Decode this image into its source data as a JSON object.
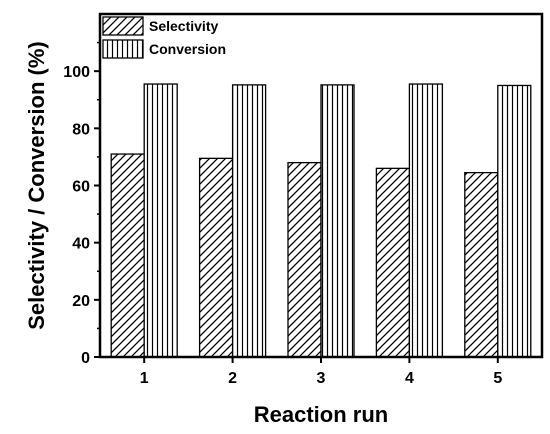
{
  "chart_data": {
    "type": "bar",
    "title": "",
    "xlabel": "Reaction run",
    "ylabel": "Selectivity / Conversion (%)",
    "categories": [
      "1",
      "2",
      "3",
      "4",
      "5"
    ],
    "ylim": [
      0,
      120
    ],
    "yticks": [
      "0",
      "20",
      "40",
      "60",
      "80",
      "100"
    ],
    "series": [
      {
        "name": "Selectivity",
        "pattern": "diagonal-hatch",
        "values": [
          71,
          69.5,
          68,
          66,
          64.5
        ]
      },
      {
        "name": "Conversion",
        "pattern": "vertical-hatch",
        "values": [
          95.5,
          95.2,
          95.2,
          95.5,
          95
        ]
      }
    ],
    "legend": {
      "position": "top-left"
    },
    "grid": false
  }
}
